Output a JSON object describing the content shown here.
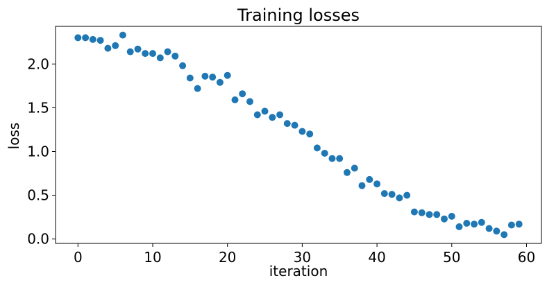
{
  "chart_data": {
    "type": "scatter",
    "title": "Training losses",
    "xlabel": "iteration",
    "ylabel": "loss",
    "xlim": [
      -3,
      62
    ],
    "ylim": [
      -0.05,
      2.43
    ],
    "xticks": [
      0,
      10,
      20,
      30,
      40,
      50,
      60
    ],
    "yticks": [
      0.0,
      0.5,
      1.0,
      1.5,
      2.0
    ],
    "xtick_labels": [
      "0",
      "10",
      "20",
      "30",
      "40",
      "50",
      "60"
    ],
    "ytick_labels": [
      "0.0",
      "0.5",
      "1.0",
      "1.5",
      "2.0"
    ],
    "grid": false,
    "marker_color": "#1f77b4",
    "series": [
      {
        "name": "loss",
        "x": [
          0,
          1,
          2,
          3,
          4,
          5,
          6,
          7,
          8,
          9,
          10,
          11,
          12,
          13,
          14,
          15,
          16,
          17,
          18,
          19,
          20,
          21,
          22,
          23,
          24,
          25,
          26,
          27,
          28,
          29,
          30,
          31,
          32,
          33,
          34,
          35,
          36,
          37,
          38,
          39,
          40,
          41,
          42,
          43,
          44,
          45,
          46,
          47,
          48,
          49,
          50,
          51,
          52,
          53,
          54,
          55,
          56,
          57,
          58,
          59
        ],
        "y": [
          2.3,
          2.3,
          2.28,
          2.27,
          2.18,
          2.21,
          2.33,
          2.14,
          2.17,
          2.12,
          2.12,
          2.07,
          2.14,
          2.09,
          1.98,
          1.84,
          1.72,
          1.86,
          1.85,
          1.79,
          1.87,
          1.59,
          1.66,
          1.57,
          1.42,
          1.46,
          1.39,
          1.42,
          1.32,
          1.3,
          1.23,
          1.2,
          1.04,
          0.98,
          0.92,
          0.92,
          0.76,
          0.81,
          0.61,
          0.68,
          0.63,
          0.52,
          0.51,
          0.47,
          0.5,
          0.31,
          0.3,
          0.28,
          0.28,
          0.23,
          0.26,
          0.14,
          0.18,
          0.17,
          0.19,
          0.12,
          0.09,
          0.05,
          0.16,
          0.17
        ]
      }
    ]
  }
}
